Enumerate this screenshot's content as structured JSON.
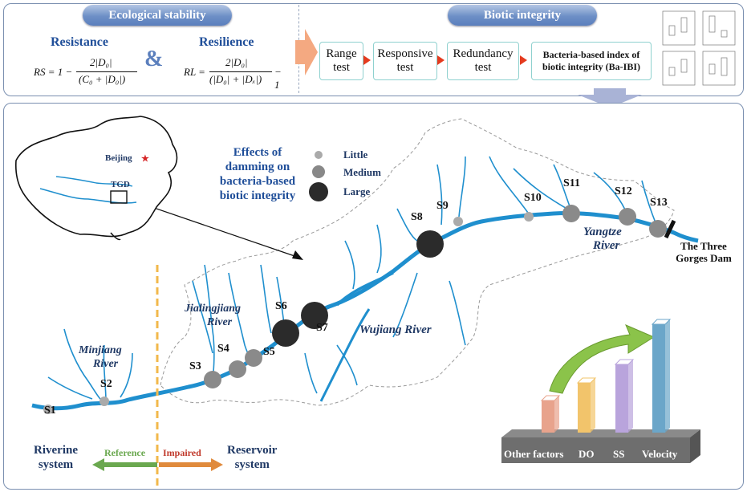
{
  "top": {
    "stability_title": "Ecological stability",
    "integrity_title": "Biotic integrity",
    "resistance_label": "Resistance",
    "resilience_label": "Resilience",
    "ampersand": "&",
    "rs_formula": {
      "lhs": "RS = 1 −",
      "num": "2|D₀|",
      "den": "(C₀ + |D₀|)"
    },
    "rl_formula": {
      "lhs": "RL =",
      "num": "2|D₀|",
      "den": "(|D₀| + |Dₓ|)",
      "tail": "− 1"
    },
    "steps": [
      "Range test",
      "Responsive test",
      "Redundancy test"
    ],
    "result": "Bacteria-based index of biotic integrity (Ba-IBI)"
  },
  "map": {
    "effects_title": [
      "Effects of",
      "damming on",
      "bacteria-based",
      "biotic integrity"
    ],
    "legend": [
      "Little",
      "Medium",
      "Large"
    ],
    "inset_beijing": "Beijing",
    "inset_tgd": "TGD",
    "rivers": {
      "minjiang": [
        "Minjiang",
        "River"
      ],
      "jialingjiang": [
        "Jialingjiang",
        "River"
      ],
      "wujiang": "Wujiang River",
      "yangtze": [
        "Yangtze",
        "River"
      ]
    },
    "dam_label": [
      "The Three",
      "Gorges Dam"
    ],
    "sites": [
      {
        "id": "S1",
        "effect": "little"
      },
      {
        "id": "S2",
        "effect": "little"
      },
      {
        "id": "S3",
        "effect": "medium"
      },
      {
        "id": "S4",
        "effect": "medium"
      },
      {
        "id": "S5",
        "effect": "medium"
      },
      {
        "id": "S6",
        "effect": "large"
      },
      {
        "id": "S7",
        "effect": "large"
      },
      {
        "id": "S8",
        "effect": "large"
      },
      {
        "id": "S9",
        "effect": "little"
      },
      {
        "id": "S10",
        "effect": "little"
      },
      {
        "id": "S11",
        "effect": "medium"
      },
      {
        "id": "S12",
        "effect": "medium"
      },
      {
        "id": "S13",
        "effect": "medium"
      }
    ],
    "riverine_system": [
      "Riverine",
      "system"
    ],
    "reservoir_system": [
      "Reservoir",
      "system"
    ],
    "reference": "Reference",
    "impaired": "Impaired"
  },
  "bars": {
    "labels": [
      "Other factors",
      "DO",
      "SS",
      "Velocity"
    ],
    "colors": [
      "#e8a38c",
      "#f2c46b",
      "#b9a4dc",
      "#6ba6c9"
    ]
  },
  "colors": {
    "river": "#1f8fce",
    "title": "#1f4e99",
    "arrow": "#f4a981",
    "reference": "#6aa84f",
    "impaired": "#c0392b"
  }
}
